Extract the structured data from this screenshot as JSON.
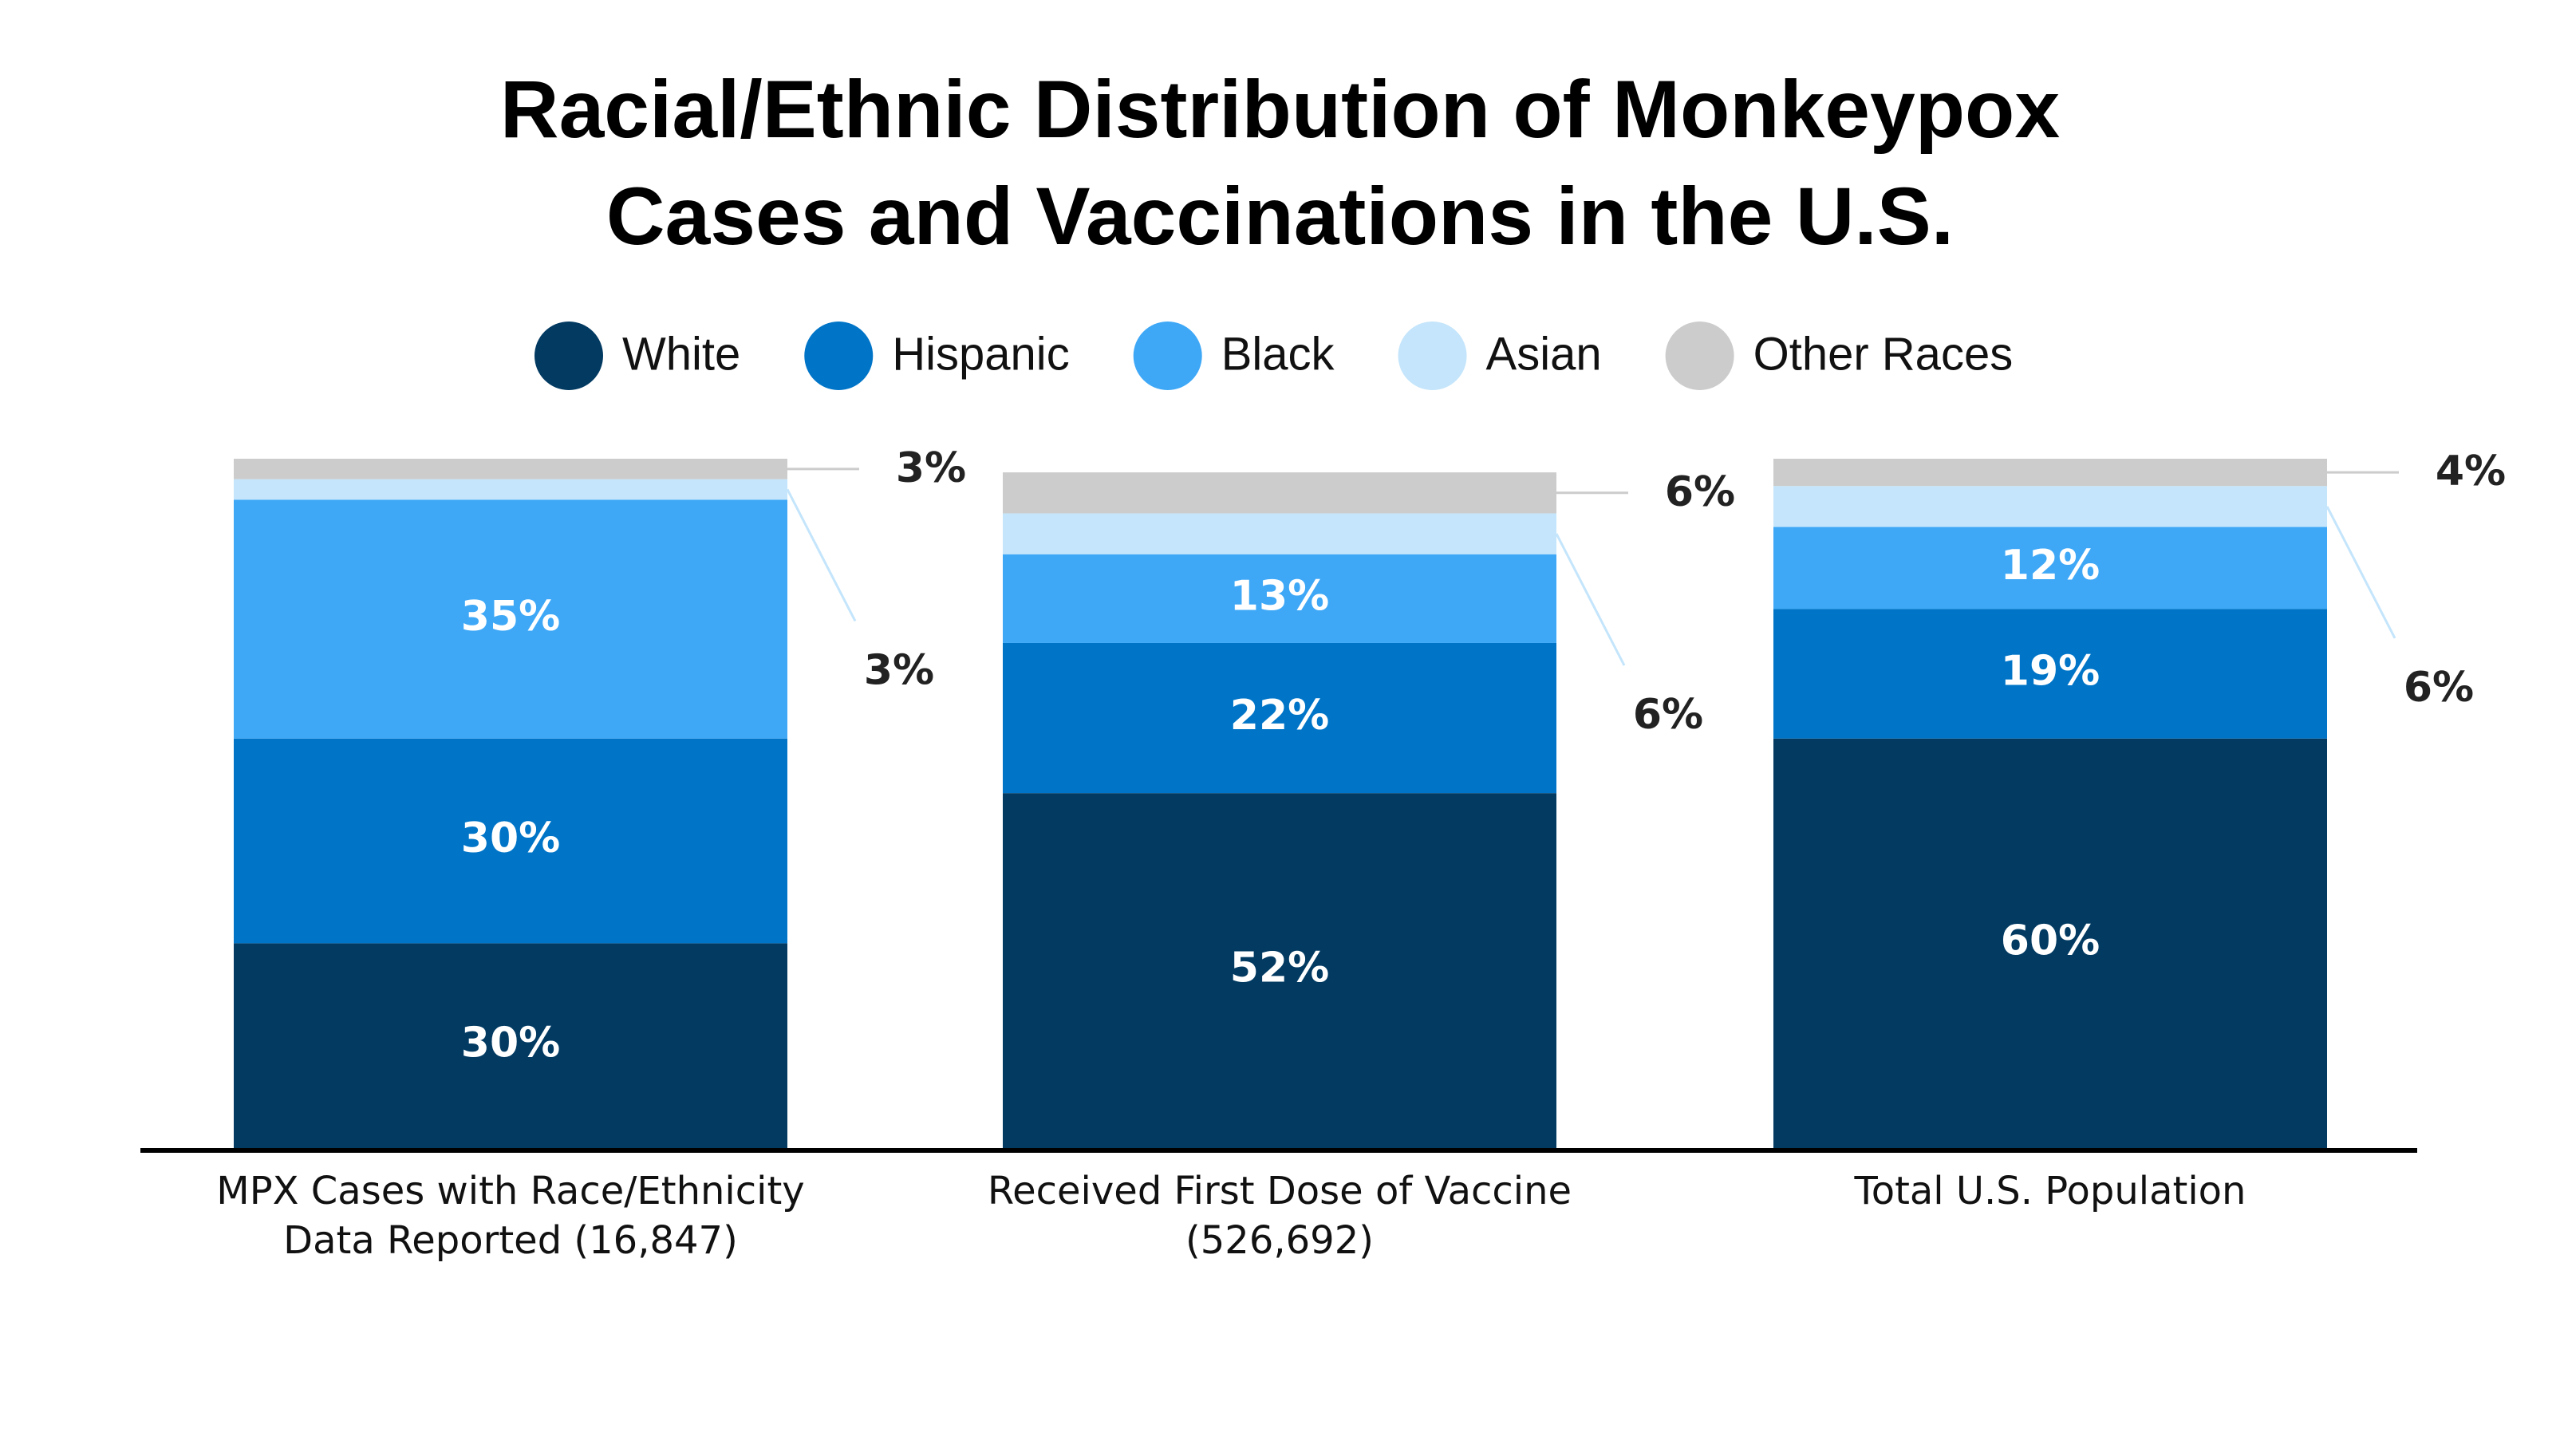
{
  "chart_data": {
    "type": "stacked-bar",
    "title": "Racial/Ethnic Distribution of Monkeypox Cases and Vaccinations in the U.S.",
    "categories": [
      "MPX Cases with Race/Ethnicity Data Reported (16,847)",
      "Received First Dose of Vaccine (526,692)",
      "Total U.S. Population"
    ],
    "series": [
      {
        "name": "White",
        "color": "#023a62",
        "values": [
          30,
          52,
          60
        ],
        "value_labels": [
          "30%",
          "52%",
          "60%"
        ]
      },
      {
        "name": "Hispanic",
        "color": "#0075c8",
        "values": [
          30,
          22,
          19
        ],
        "value_labels": [
          "30%",
          "22%",
          "19%"
        ]
      },
      {
        "name": "Black",
        "color": "#3ea8f7",
        "values": [
          35,
          13,
          12
        ],
        "value_labels": [
          "35%",
          "13%",
          "12%"
        ]
      },
      {
        "name": "Asian",
        "color": "#c4e5fb",
        "values": [
          3,
          6,
          6
        ],
        "value_labels": [
          "3%",
          "6%",
          "6%"
        ]
      },
      {
        "name": "Other Races",
        "color": "#cccccc",
        "values": [
          3,
          6,
          4
        ],
        "value_labels": [
          "3%",
          "6%",
          "4%"
        ]
      }
    ]
  }
}
